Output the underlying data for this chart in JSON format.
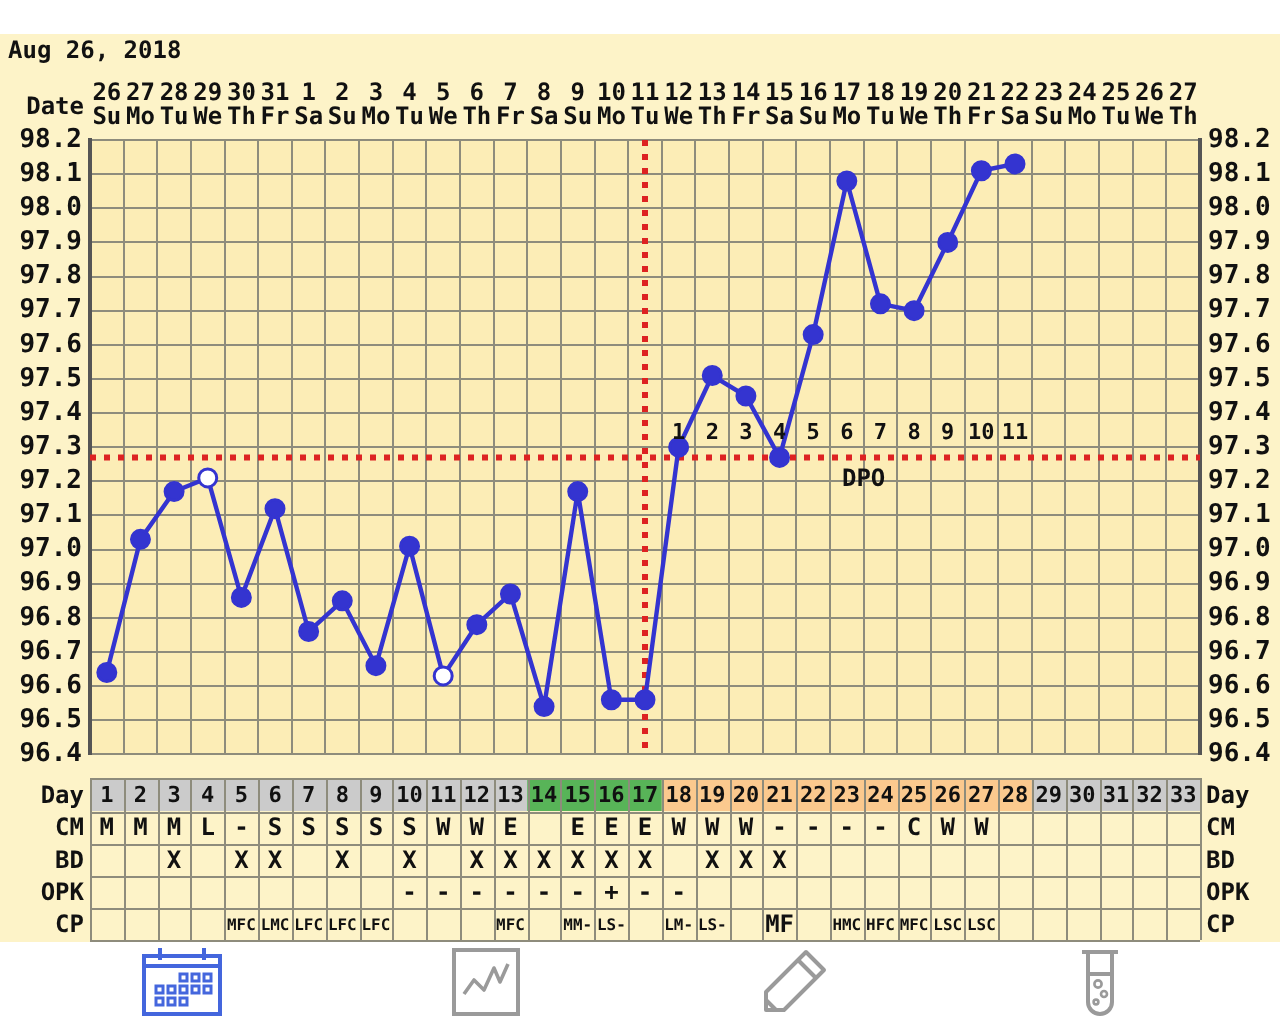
{
  "chart_data": [
    {
      "type": "line",
      "title": "Aug 26, 2018",
      "xlabel": "Date",
      "categories": [
        "26 Su",
        "27 Mo",
        "28 Tu",
        "29 We",
        "30 Th",
        "31 Fr",
        "1 Sa",
        "2 Su",
        "3 Mo",
        "4 Tu",
        "5 We",
        "6 Th",
        "7 Fr",
        "8 Sa",
        "9 Su",
        "10 Mo",
        "11 Tu",
        "12 We",
        "13 Th",
        "14 Fr",
        "15 Sa",
        "16 Su",
        "17 Mo",
        "18 Tu",
        "19 We",
        "20 Th",
        "21 Fr",
        "22 Sa",
        "23 Su",
        "24 Mo",
        "25 Tu",
        "26 We",
        "27 Th"
      ],
      "series": [
        {
          "color": "#3434d0",
          "values": [
            96.64,
            97.03,
            97.17,
            97.21,
            96.86,
            97.12,
            96.76,
            96.85,
            96.66,
            97.01,
            96.63,
            96.78,
            96.87,
            96.54,
            97.17,
            96.56,
            96.56,
            97.3,
            97.51,
            97.45,
            97.27,
            97.63,
            98.08,
            97.72,
            97.7,
            97.9,
            98.11,
            98.13,
            null,
            null,
            null,
            null,
            null
          ],
          "colors": [
            "#3434d0",
            "#3434d0",
            "#3434d0",
            "#ffffff",
            "#3434d0",
            "#3434d0",
            "#3434d0",
            "#3434d0",
            "#3434d0",
            "#3434d0",
            "#ffffff",
            "#3434d0",
            "#3434d0",
            "#3434d0",
            "#3434d0",
            "#3434d0",
            "#3434d0",
            "#3434d0",
            "#3434d0",
            "#3434d0",
            "#3434d0",
            "#3434d0",
            "#3434d0",
            "#3434d0",
            "#3434d0",
            "#3434d0",
            "#3434d0",
            "#3434d0",
            "#3434d0",
            "#3434d0",
            "#3434d0",
            "#3434d0",
            "#3434d0"
          ]
        }
      ],
      "ylim": [
        96.4,
        98.2
      ],
      "yticks": [
        96.4,
        96.5,
        96.6,
        96.7,
        96.8,
        96.9,
        {
          "value": 97,
          "label": "97.0"
        },
        97.1,
        97.2,
        97.3,
        97.4,
        97.5,
        97.6,
        97.7,
        97.8,
        97.9,
        {
          "value": 98,
          "label": "98.0"
        },
        98.1,
        98.2
      ],
      "y2lim": [
        96.4,
        98.2
      ],
      "y2ticks": [
        96.4,
        96.5,
        96.6,
        96.7,
        96.8,
        96.9,
        {
          "value": 97,
          "label": "97.0"
        },
        97.1,
        97.2,
        97.3,
        97.4,
        97.5,
        97.6,
        97.7,
        97.8,
        97.9,
        {
          "value": 98,
          "label": "98.0"
        },
        98.1,
        98.2
      ],
      "grid": true,
      "marker": "circle",
      "line_style": "solid",
      "ref_lines": [
        {
          "axis": "x",
          "value": "11 Tu",
          "color": "#dd2222",
          "line_style": "dotted"
        },
        {
          "axis": "y",
          "value": 97.27,
          "label": "DPO",
          "color": "#dd2222",
          "line_style": "dotted"
        }
      ],
      "annotations": [
        "1",
        "2",
        "3",
        "4",
        "5",
        "6",
        "7",
        "8",
        "9",
        "10",
        "11"
      ]
    },
    {
      "type": "heatmap",
      "xlabel": "Day",
      "categories": [
        "1",
        "2",
        "3",
        "4",
        "5",
        "6",
        "7",
        "8",
        "9",
        "10",
        "11",
        "12",
        "13",
        "14",
        "15",
        "16",
        "17",
        "18",
        "19",
        "20",
        "21",
        "22",
        "23",
        "24",
        "25",
        "26",
        "27",
        "28",
        "29",
        "30",
        "31",
        "32",
        "33"
      ],
      "y_categories": [
        "CM",
        "BD",
        "OPK",
        "CP"
      ],
      "y2_categories": [
        "CM",
        "BD",
        "OPK",
        "CP"
      ],
      "cells": [
        [
          null,
          null,
          null,
          null,
          null,
          null,
          null,
          null,
          null,
          null,
          null,
          null,
          null,
          null,
          null,
          null,
          null,
          null,
          null,
          null,
          null,
          null,
          null,
          null,
          null,
          null,
          null,
          null,
          null,
          null,
          null,
          null,
          null
        ],
        [
          null,
          null,
          null,
          null,
          null,
          null,
          null,
          null,
          null,
          null,
          null,
          null,
          null,
          null,
          null,
          null,
          null,
          null,
          null,
          null,
          null,
          null,
          null,
          null,
          null,
          null,
          null,
          null,
          null,
          null,
          null,
          null,
          null
        ],
        [
          null,
          null,
          null,
          null,
          null,
          null,
          null,
          null,
          null,
          null,
          null,
          null,
          null,
          null,
          null,
          null,
          null,
          null,
          null,
          null,
          null,
          null,
          null,
          null,
          null,
          null,
          null,
          null,
          null,
          null,
          null,
          null,
          null
        ],
        [
          null,
          null,
          null,
          null,
          null,
          null,
          null,
          null,
          null,
          null,
          null,
          null,
          null,
          null,
          null,
          null,
          null,
          null,
          null,
          null,
          null,
          null,
          null,
          null,
          null,
          null,
          null,
          null,
          null,
          null,
          null,
          null,
          null
        ]
      ],
      "cell_labels": [
        [
          "M",
          "M",
          "M",
          "L",
          "-",
          "S",
          "S",
          "S",
          "S",
          "S",
          "W",
          "W",
          "E",
          null,
          "E",
          "E",
          "E",
          "W",
          "W",
          "W",
          "-",
          "-",
          "-",
          "-",
          "C",
          "W",
          "W",
          null,
          null,
          null,
          null,
          null,
          null
        ],
        [
          null,
          null,
          "X",
          null,
          "X",
          "X",
          null,
          "X",
          null,
          "X",
          null,
          "X",
          "X",
          "X",
          "X",
          "X",
          "X",
          null,
          "X",
          "X",
          "X",
          null,
          null,
          null,
          null,
          null,
          null,
          null,
          null,
          null,
          null,
          null,
          null
        ],
        [
          null,
          null,
          null,
          null,
          null,
          null,
          null,
          null,
          null,
          "-",
          "-",
          "-",
          "-",
          "-",
          "-",
          "+",
          "-",
          "-",
          null,
          null,
          null,
          null,
          null,
          null,
          null,
          null,
          null,
          null,
          null,
          null,
          null,
          null,
          null
        ],
        [
          null,
          null,
          null,
          null,
          "MFC",
          "LMC",
          "LFC",
          "LFC",
          "LFC",
          null,
          null,
          null,
          "MFC",
          null,
          "MM-",
          "LS-",
          null,
          "LM-",
          "LS-",
          null,
          "MF",
          null,
          "HMC",
          "HFC",
          "MFC",
          "LSC",
          "LSC",
          null,
          null,
          null,
          null,
          null,
          null
        ]
      ],
      "bands": [
        {
          "axis": "x",
          "from": "14",
          "to": "17",
          "color": "#58b458"
        },
        {
          "axis": "x",
          "from": "18",
          "to": "28",
          "color": "#fbc98e"
        }
      ],
      "grid": true
    }
  ]
}
